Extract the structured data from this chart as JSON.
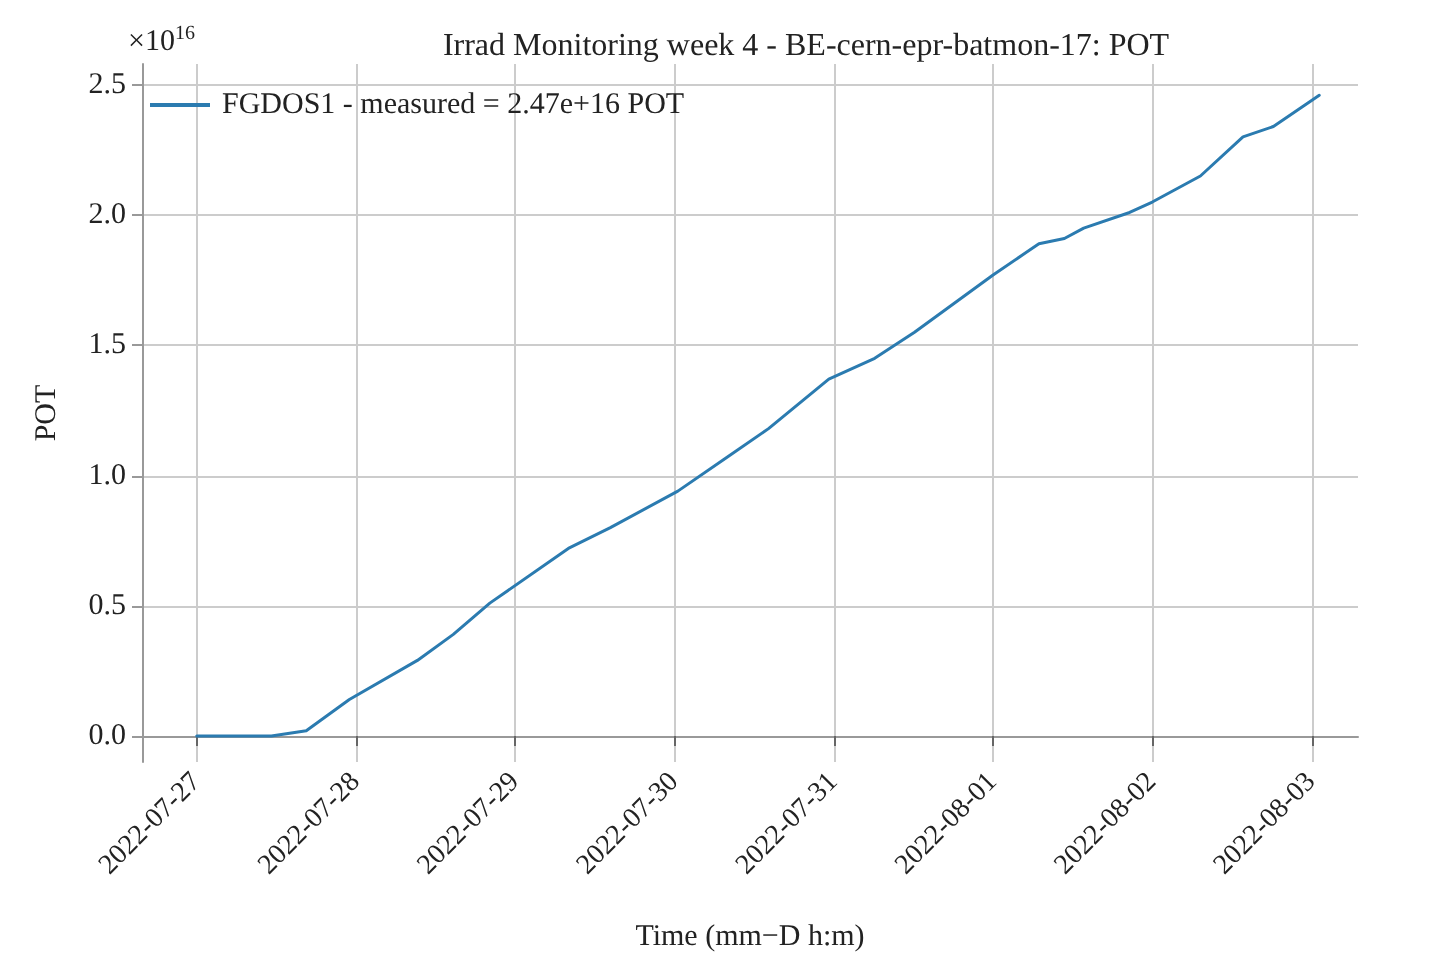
{
  "chart_data": {
    "type": "line",
    "title": "Irrad Monitoring week 4 - BE-cern-epr-batmon-17: POT",
    "xlabel": "Time (mm−D h:m)",
    "ylabel": "POT",
    "annotations": [
      "×10$^{16}$"
    ],
    "x": [
      "2022-07-27T00:00",
      "2022-07-27T11:15",
      "2022-07-27T16:30",
      "2022-07-27T23:00",
      "2022-07-28T09:15",
      "2022-07-28T14:40",
      "2022-07-28T20:10",
      "2022-07-29T08:00",
      "2022-07-29T14:20",
      "2022-07-30T00:30",
      "2022-07-30T07:55",
      "2022-07-30T14:10",
      "2022-07-30T23:15",
      "2022-07-31T06:10",
      "2022-07-31T12:10",
      "2022-08-01T00:00",
      "2022-08-01T06:55",
      "2022-08-01T10:45",
      "2022-08-01T13:40",
      "2022-08-01T20:35",
      "2022-08-02T00:00",
      "2022-08-02T07:15",
      "2022-08-02T13:40",
      "2022-08-02T18:15",
      "2022-08-03T01:10"
    ],
    "series": [
      {
        "name": "FGDOS1 - measured = 2.47e+16 POT",
        "color": "#2b7bb0",
        "values": [
          0,
          0,
          0.02,
          0.14,
          0.29,
          0.39,
          0.51,
          0.72,
          0.8,
          0.94,
          1.07,
          1.18,
          1.37,
          1.45,
          1.55,
          1.77,
          1.89,
          1.91,
          1.95,
          2.01,
          2.05,
          2.15,
          2.3,
          2.34,
          2.46
        ]
      }
    ],
    "xlim": [
      "2022-07-26T15:45",
      "2022-08-03T07:00"
    ],
    "xticks": [
      "2022-07-27",
      "2022-07-28",
      "2022-07-29",
      "2022-07-30",
      "2022-07-31",
      "2022-08-01",
      "2022-08-02",
      "2022-08-03"
    ],
    "ylim": [
      -0.1,
      2.58
    ],
    "yticks": [
      {
        "value": 0,
        "label": "0.0"
      },
      {
        "value": 0.5,
        "label": "0.5"
      },
      {
        "value": 1,
        "label": "1.0"
      },
      {
        "value": 1.5,
        "label": "1.5"
      },
      {
        "value": 2,
        "label": "2.0"
      },
      {
        "value": 2.5,
        "label": "2.5"
      }
    ],
    "grid": true,
    "legend": "top left",
    "line_style": "solid",
    "marker": "none"
  }
}
